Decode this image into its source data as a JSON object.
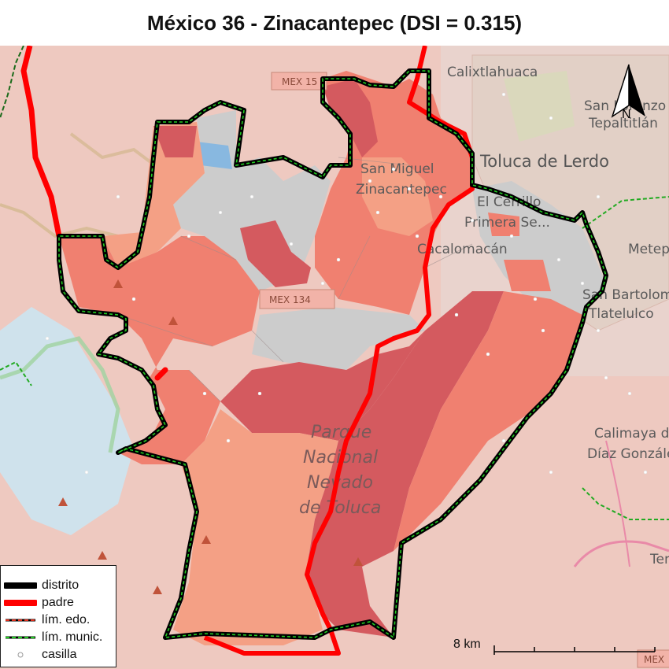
{
  "title": "México 36 - Zinacantepec (DSI = 0.315)",
  "map": {
    "places": [
      {
        "name": "Calixtlahuaca"
      },
      {
        "name": "San Lorenzo"
      },
      {
        "name": "Tepaltitlán"
      },
      {
        "name": "Toluca de Lerdo"
      },
      {
        "name": "San Miguel"
      },
      {
        "name": "Zinacantepec"
      },
      {
        "name": "El Cerrillo"
      },
      {
        "name": "Primera Se..."
      },
      {
        "name": "Cacalomacán"
      },
      {
        "name": "Metepec"
      },
      {
        "name": "San Bartolomé"
      },
      {
        "name": "Tlatelulco"
      },
      {
        "name": "Calimaya de"
      },
      {
        "name": "Díaz González"
      },
      {
        "name": "Tenango"
      }
    ],
    "park_label": [
      "Parque",
      "Nacional",
      "Nevado",
      "de Toluca"
    ],
    "highway_shields": [
      "MEX 15",
      "MEX 134",
      "MEX"
    ],
    "colors": {
      "distrito": "#000000",
      "padre": "#ff0000",
      "lim_edo": "#e0301e",
      "lim_munic": "#22cc22",
      "choropleth": [
        "#f4a085",
        "#f08070",
        "#e56a6a",
        "#d45a5f"
      ],
      "water": "#cfe2ec",
      "no_data": "#cccccc"
    }
  },
  "legend": {
    "items": [
      {
        "label": "distrito",
        "symbol": "thick-black-line"
      },
      {
        "label": "padre",
        "symbol": "thick-red-line"
      },
      {
        "label": "lím. edo.",
        "symbol": "red-dashed-line"
      },
      {
        "label": "lím. munic.",
        "symbol": "green-dashed-line"
      },
      {
        "label": "casilla",
        "symbol": "small-circle"
      }
    ]
  },
  "scale": {
    "label": "8 km"
  },
  "north_arrow": {
    "label": "N"
  }
}
